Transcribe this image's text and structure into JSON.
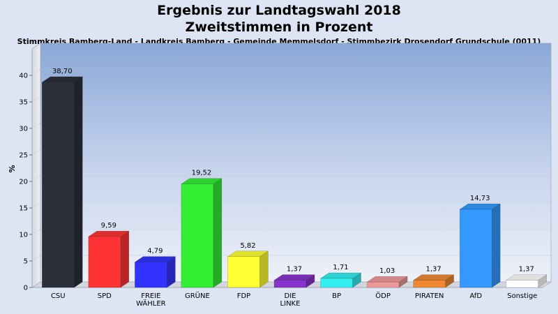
{
  "chart_data": {
    "type": "bar",
    "title_line1": "Ergebnis zur Landtagswahl 2018",
    "title_line2": "Zweitstimmen in Prozent",
    "subtitle": "Stimmkreis Bamberg-Land - Landkreis Bamberg - Gemeinde Memmelsdorf - Stimmbezirk Drosendorf Grundschule (0011)",
    "ylabel": "%",
    "ylim": [
      0,
      45
    ],
    "yticks": [
      0,
      5,
      10,
      15,
      20,
      25,
      30,
      35,
      40
    ],
    "grid": true,
    "categories": [
      [
        "CSU"
      ],
      [
        "SPD"
      ],
      [
        "FREIE",
        "WÄHLER"
      ],
      [
        "GRÜNE"
      ],
      [
        "FDP"
      ],
      [
        "DIE",
        "LINKE"
      ],
      [
        "BP"
      ],
      [
        "ÖDP"
      ],
      [
        "PIRATEN"
      ],
      [
        "AfD"
      ],
      [
        "Sonstige"
      ]
    ],
    "values": [
      38.7,
      9.59,
      4.79,
      19.52,
      5.82,
      1.37,
      1.71,
      1.03,
      1.37,
      14.73,
      1.37
    ],
    "value_labels": [
      "38,70",
      "9,59",
      "4,79",
      "19,52",
      "5,82",
      "1,37",
      "1,71",
      "1,03",
      "1,37",
      "14,73",
      "1,37"
    ],
    "colors": [
      "#2b2f3a",
      "#ff3333",
      "#3333ff",
      "#33ee33",
      "#ffff33",
      "#8833cc",
      "#33eeee",
      "#ee9999",
      "#ee8833",
      "#3399ff",
      "#ffffff"
    ]
  }
}
